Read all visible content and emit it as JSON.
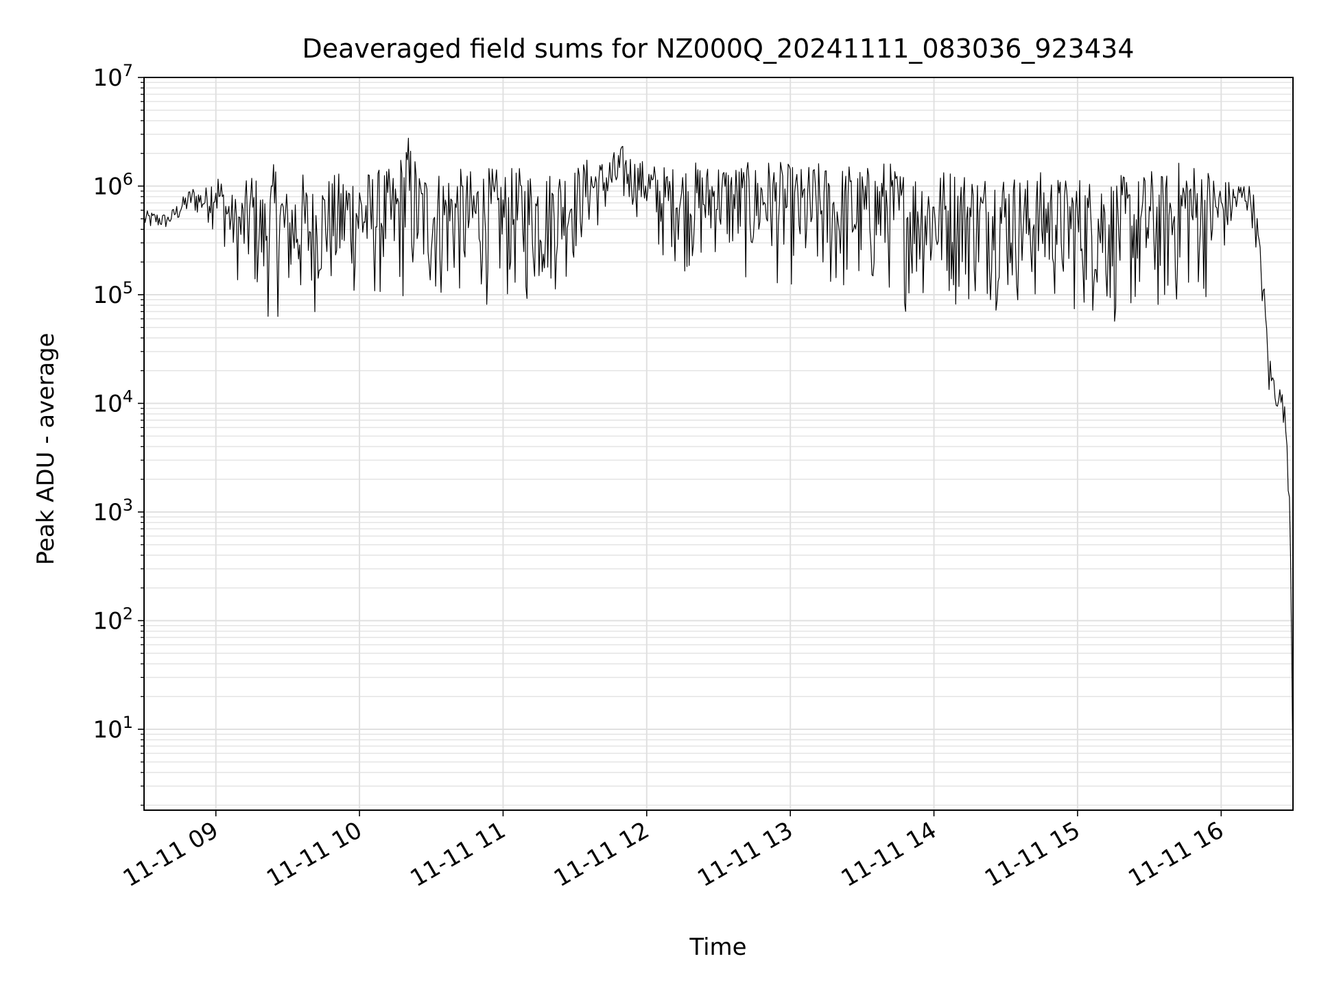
{
  "chart_data": {
    "type": "line",
    "title": "Deaveraged field sums for NZ000Q_20241111_083036_923434",
    "xlabel": "Time",
    "ylabel": "Peak ADU - average",
    "yscale": "log",
    "ylim": [
      1.8,
      10000000
    ],
    "xlim": [
      "2024-11-11 08:30",
      "2024-11-11 16:30"
    ],
    "grid": true,
    "legend": "none",
    "line_color": "#000000",
    "x_ticks": [
      "11-11 09",
      "11-11 10",
      "11-11 11",
      "11-11 12",
      "11-11 13",
      "11-11 14",
      "11-11 15",
      "11-11 16"
    ],
    "y_ticks": [
      {
        "base": "10",
        "exp": "1",
        "value": 10
      },
      {
        "base": "10",
        "exp": "2",
        "value": 100
      },
      {
        "base": "10",
        "exp": "3",
        "value": 1000
      },
      {
        "base": "10",
        "exp": "4",
        "value": 10000
      },
      {
        "base": "10",
        "exp": "5",
        "value": 100000
      },
      {
        "base": "10",
        "exp": "6",
        "value": 1000000
      },
      {
        "base": "10",
        "exp": "7",
        "value": 10000000
      }
    ],
    "series": [
      {
        "x": [
          "2024-11-11 08:30",
          "2024-11-11 08:40",
          "2024-11-11 08:50",
          "2024-11-11 08:55",
          "2024-11-11 09:00",
          "2024-11-11 09:05",
          "2024-11-11 09:10",
          "2024-11-11 09:15",
          "2024-11-11 09:20",
          "2024-11-11 09:25",
          "2024-11-11 09:30",
          "2024-11-11 09:35",
          "2024-11-11 09:40",
          "2024-11-11 09:45",
          "2024-11-11 09:50",
          "2024-11-11 09:55",
          "2024-11-11 10:00",
          "2024-11-11 10:05",
          "2024-11-11 10:10",
          "2024-11-11 10:15",
          "2024-11-11 10:20",
          "2024-11-11 10:25",
          "2024-11-11 10:30",
          "2024-11-11 10:35",
          "2024-11-11 10:40",
          "2024-11-11 10:45",
          "2024-11-11 10:50",
          "2024-11-11 10:55",
          "2024-11-11 11:00",
          "2024-11-11 11:05",
          "2024-11-11 11:10",
          "2024-11-11 11:15",
          "2024-11-11 11:20",
          "2024-11-11 11:25",
          "2024-11-11 11:30",
          "2024-11-11 11:35",
          "2024-11-11 11:40",
          "2024-11-11 11:45",
          "2024-11-11 11:50",
          "2024-11-11 11:55",
          "2024-11-11 12:00",
          "2024-11-11 12:05",
          "2024-11-11 12:10",
          "2024-11-11 12:15",
          "2024-11-11 12:20",
          "2024-11-11 12:25",
          "2024-11-11 12:30",
          "2024-11-11 12:35",
          "2024-11-11 12:40",
          "2024-11-11 12:45",
          "2024-11-11 12:50",
          "2024-11-11 12:55",
          "2024-11-11 13:00",
          "2024-11-11 13:05",
          "2024-11-11 13:10",
          "2024-11-11 13:15",
          "2024-11-11 13:20",
          "2024-11-11 13:25",
          "2024-11-11 13:30",
          "2024-11-11 13:35",
          "2024-11-11 13:40",
          "2024-11-11 13:45",
          "2024-11-11 13:50",
          "2024-11-11 13:55",
          "2024-11-11 14:00",
          "2024-11-11 14:05",
          "2024-11-11 14:10",
          "2024-11-11 14:15",
          "2024-11-11 14:20",
          "2024-11-11 14:25",
          "2024-11-11 14:30",
          "2024-11-11 14:35",
          "2024-11-11 14:40",
          "2024-11-11 14:45",
          "2024-11-11 14:50",
          "2024-11-11 14:55",
          "2024-11-11 15:00",
          "2024-11-11 15:05",
          "2024-11-11 15:10",
          "2024-11-11 15:15",
          "2024-11-11 15:20",
          "2024-11-11 15:25",
          "2024-11-11 15:30",
          "2024-11-11 15:35",
          "2024-11-11 15:40",
          "2024-11-11 15:45",
          "2024-11-11 15:50",
          "2024-11-11 15:55",
          "2024-11-11 16:00",
          "2024-11-11 16:05",
          "2024-11-11 16:10",
          "2024-11-11 16:13",
          "2024-11-11 16:15",
          "2024-11-11 16:18",
          "2024-11-11 16:20",
          "2024-11-11 16:22",
          "2024-11-11 16:24",
          "2024-11-11 16:26",
          "2024-11-11 16:28",
          "2024-11-11 16:29",
          "2024-11-11 16:30"
        ],
        "high": [
          600000,
          550000,
          1000000,
          900000,
          1500000,
          900000,
          800000,
          1500000,
          900000,
          1800000,
          900000,
          1500000,
          1000000,
          1200000,
          1300000,
          1500000,
          1500000,
          1400000,
          1500000,
          1400000,
          3300000,
          1500000,
          1400000,
          1500000,
          1500000,
          1400000,
          1500000,
          1500000,
          1400000,
          1500000,
          1500000,
          1500000,
          1400000,
          1600000,
          1500000,
          1800000,
          1700000,
          2000000,
          2400000,
          1800000,
          1700000,
          1600000,
          1500000,
          1600000,
          1700000,
          1600000,
          1700000,
          1600000,
          1700000,
          1600000,
          1800000,
          1700000,
          1600000,
          1500000,
          1700000,
          1600000,
          1500000,
          1700000,
          1500000,
          1600000,
          1800000,
          1500000,
          1400000,
          1500000,
          1400000,
          1500000,
          1500000,
          1400000,
          1300000,
          1500000,
          1400000,
          1300000,
          1200000,
          1400000,
          1300000,
          1200000,
          1300000,
          1200000,
          1400000,
          1200000,
          1300000,
          1200000,
          1500000,
          1300000,
          1500000,
          2000000,
          1600000,
          1500000,
          1200000,
          1100000,
          1100000,
          1000000,
          550000,
          120000,
          30000,
          20000,
          15000,
          12000,
          5000,
          700,
          3.5
        ],
        "low": [
          350000,
          380000,
          500000,
          450000,
          350000,
          200000,
          100000,
          70000,
          50000,
          50000,
          60000,
          40000,
          50000,
          80000,
          60000,
          70000,
          70000,
          60000,
          70000,
          60000,
          60000,
          70000,
          60000,
          60000,
          70000,
          60000,
          70000,
          70000,
          60000,
          70000,
          60000,
          70000,
          80000,
          100000,
          150000,
          300000,
          350000,
          400000,
          500000,
          500000,
          400000,
          150000,
          200000,
          150000,
          120000,
          150000,
          200000,
          150000,
          100000,
          120000,
          150000,
          100000,
          100000,
          80000,
          70000,
          70000,
          60000,
          70000,
          60000,
          70000,
          80000,
          70000,
          60000,
          70000,
          60000,
          70000,
          60000,
          60000,
          60000,
          70000,
          60000,
          60000,
          55000,
          60000,
          60000,
          55000,
          50000,
          50000,
          45000,
          40000,
          45000,
          40000,
          40000,
          45000,
          50000,
          60000,
          70000,
          80000,
          150000,
          300000,
          500000,
          400000,
          200000,
          40000,
          8000,
          7000,
          8000,
          6000,
          1500,
          300,
          3.5
        ]
      }
    ]
  }
}
